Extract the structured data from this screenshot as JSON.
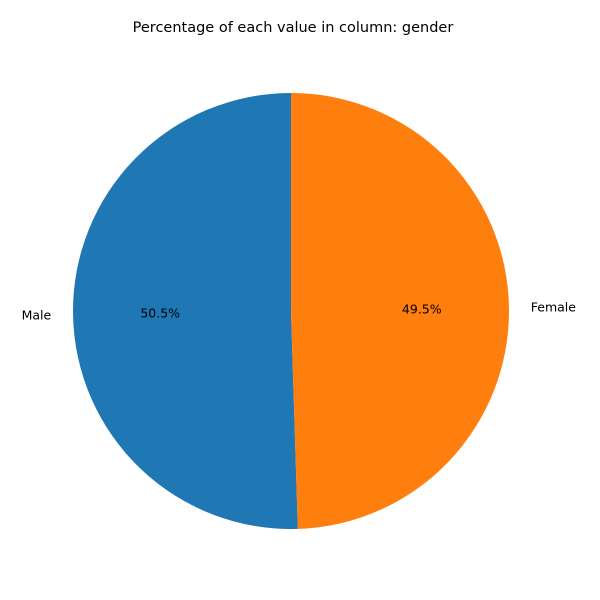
{
  "chart_data": {
    "type": "pie",
    "title": "Percentage of each value in column: gender",
    "categories": [
      "Male",
      "Female"
    ],
    "values": [
      50.5,
      49.5
    ],
    "value_labels": [
      "50.5%",
      "49.5%"
    ],
    "colors": [
      "#1f77b4",
      "#ff7f0e"
    ],
    "start_angle": 90,
    "direction": "counterclockwise",
    "legend": "none"
  }
}
